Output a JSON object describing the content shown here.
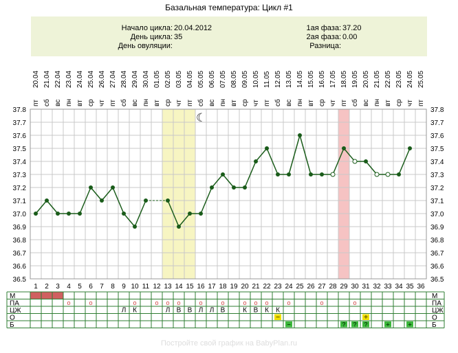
{
  "title": "Базальная температура: Цикл #1",
  "info": {
    "cycle_start_label": "Начало цикла:",
    "cycle_start_value": "20.04.2012",
    "cycle_day_label": "День цикла:",
    "cycle_day_value": "35",
    "ovulation_day_label": "День овуляции:",
    "ovulation_day_value": "",
    "phase1_label": "1ая фаза:",
    "phase1_value": "37.20",
    "phase2_label": "2ая фаза:",
    "phase2_value": "0.00",
    "difference_label": "Разница:",
    "difference_value": ""
  },
  "footer": "Постройте свой график на BabyPlan.ru",
  "chart_data": {
    "type": "line",
    "ylim": [
      36.5,
      37.8
    ],
    "yticks": [
      "36.5",
      "36.6",
      "36.7",
      "36.8",
      "36.9",
      "37.0",
      "37.1",
      "37.2",
      "37.3",
      "37.4",
      "37.5",
      "37.6",
      "37.7",
      "37.8"
    ],
    "days": [
      1,
      2,
      3,
      4,
      5,
      6,
      7,
      8,
      9,
      10,
      11,
      12,
      13,
      14,
      15,
      16,
      17,
      18,
      19,
      20,
      21,
      22,
      23,
      24,
      25,
      26,
      27,
      28,
      29,
      30,
      31,
      32,
      33,
      34,
      35,
      36
    ],
    "dates": [
      "20.04",
      "21.04",
      "22.04",
      "23.04",
      "24.04",
      "25.04",
      "26.04",
      "27.04",
      "28.04",
      "29.04",
      "30.04",
      "01.05",
      "02.05",
      "03.05",
      "04.05",
      "05.05",
      "06.05",
      "07.05",
      "08.05",
      "09.05",
      "10.05",
      "11.05",
      "12.05",
      "13.05",
      "14.05",
      "15.05",
      "16.05",
      "17.05",
      "18.05",
      "19.05",
      "20.05",
      "21.05",
      "22.05",
      "23.05",
      "24.05",
      "25.05"
    ],
    "weekdays": [
      "пт",
      "сб",
      "вс",
      "пн",
      "вт",
      "ср",
      "чт",
      "пт",
      "сб",
      "вс",
      "пн",
      "вт",
      "ср",
      "чт",
      "пт",
      "сб",
      "вс",
      "пн",
      "вт",
      "ср",
      "чт",
      "пт",
      "сб",
      "вс",
      "пн",
      "вт",
      "ср",
      "чт",
      "пт",
      "сб",
      "вс",
      "пн",
      "вт",
      "ср",
      "чт",
      "пт"
    ],
    "temperatures": [
      37.0,
      37.1,
      37.0,
      37.0,
      37.0,
      37.2,
      37.1,
      37.2,
      37.0,
      36.9,
      37.1,
      null,
      37.1,
      36.9,
      37.0,
      37.0,
      37.2,
      37.3,
      37.2,
      37.2,
      37.4,
      37.5,
      37.3,
      37.3,
      37.6,
      37.3,
      37.3,
      37.3,
      37.5,
      37.4,
      37.4,
      37.3,
      37.3,
      37.3,
      37.5,
      null
    ],
    "hollow_days": [
      28,
      30,
      32,
      33
    ],
    "dashed_segments": [
      [
        11,
        13
      ]
    ],
    "yellow_band_days": [
      13,
      15
    ],
    "red_band_days": [
      29,
      29
    ],
    "moon_day": 16,
    "moon_symbol": "☾",
    "colors": {
      "line": "#1a5c1a",
      "point": "#1a5c1a",
      "grid": "#c8c8c8",
      "yellow_band": "#f7f5c2",
      "red_band": "#f6c3c3",
      "row_grid": "#2e7d32",
      "mens": "#d06060",
      "green_mark": "#3cb83c",
      "yellow_mark": "#f0e000"
    },
    "rows": [
      {
        "label": "М",
        "right_label": "М",
        "filled_days": [
          1,
          2,
          3
        ]
      },
      {
        "label": "ПА",
        "right_label": "ПА",
        "marks": [
          [
            4,
            "o"
          ],
          [
            6,
            "o"
          ],
          [
            10,
            "o"
          ],
          [
            12,
            "o"
          ],
          [
            13,
            "o"
          ],
          [
            14,
            "o"
          ],
          [
            16,
            "o"
          ],
          [
            18,
            "o"
          ],
          [
            20,
            "o"
          ],
          [
            21,
            "o"
          ],
          [
            22,
            "o"
          ],
          [
            24,
            "o"
          ],
          [
            27,
            "o"
          ],
          [
            30,
            "o"
          ]
        ]
      },
      {
        "label": "ЦЖ",
        "right_label": "ЦЖ",
        "marks": [
          [
            9,
            "Л"
          ],
          [
            10,
            "К"
          ],
          [
            13,
            "Л"
          ],
          [
            14,
            "В"
          ],
          [
            15,
            "В"
          ],
          [
            16,
            "Л"
          ],
          [
            17,
            "Л"
          ],
          [
            18,
            "В"
          ],
          [
            20,
            "К"
          ],
          [
            21,
            "В"
          ],
          [
            22,
            "К"
          ],
          [
            23,
            "К"
          ]
        ]
      },
      {
        "label": "О",
        "right_label": "О",
        "yellow_marks": [
          [
            23,
            "−"
          ],
          [
            31,
            "+"
          ]
        ]
      },
      {
        "label": "Б",
        "right_label": "Б",
        "green_marks": [
          [
            24,
            "−"
          ],
          [
            29,
            "?"
          ],
          [
            30,
            "?"
          ],
          [
            31,
            "?"
          ],
          [
            33,
            "+"
          ],
          [
            35,
            "+"
          ]
        ]
      }
    ]
  }
}
